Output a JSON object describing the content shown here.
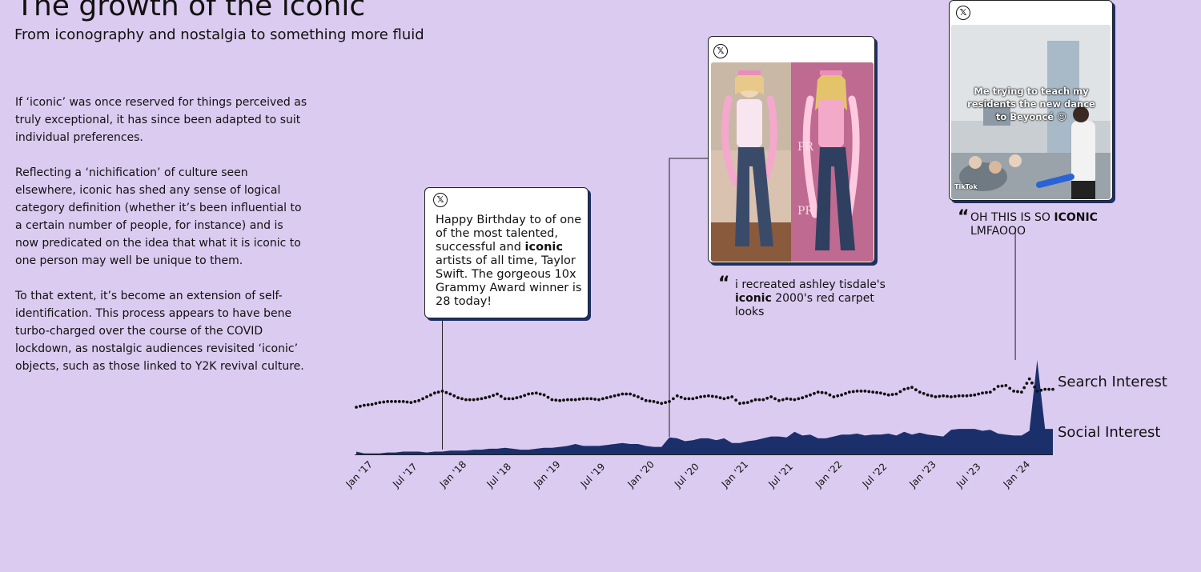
{
  "header": {
    "title": "The growth of the iconic",
    "subtitle": "From iconography and nostalgia to something more fluid"
  },
  "body": {
    "paragraphs": [
      "If ‘iconic’ was once reserved for things perceived as truly exceptional, it has since been adapted to suit individual preferences.",
      "Reflecting a ‘nichification’ of culture seen elsewhere, iconic has shed any sense of logical category definition (whether it’s been influential to a certain number of people, for instance) and is now predicated on the idea that what it is iconic to one person may well be unique to them.",
      "To that extent, it’s become an extension of self-identification. This process appears to have bene turbo-charged over the course of the COVID lockdown, as nostalgic audiences revisited ‘iconic’ objects, such as those linked to Y2K revival culture."
    ]
  },
  "cards": {
    "tweet": {
      "logo": "𝕏",
      "text_before": "Happy Birthday to of one of the most talented, successful and ",
      "keyword": "iconic",
      "text_after": " artists of all time, Taylor Swift. The gorgeous 10x Grammy Award winner is 28 today!"
    },
    "photo_post": {
      "logo": "𝕏",
      "quote_before": "i recreated ashley tisdale's ",
      "keyword": "iconic",
      "quote_after": " 2000's red carpet looks"
    },
    "video_post": {
      "logo": "𝕏",
      "caption": "Me trying to teach my residents the new dance to Beyoncé 😉",
      "watermark": "TikTok",
      "quote_before": "OH THIS IS SO ",
      "keyword": "ICONIC",
      "quote_after": " LMFAOOO"
    }
  },
  "colors": {
    "background": "#dccbf0",
    "social_fill": "#1b2f6b",
    "search_dots": "#111111",
    "card_shadow": "#1b2f6b"
  },
  "chart_data": {
    "type": "area",
    "title": "",
    "xlabel": "",
    "ylabel": "",
    "x_ticks": [
      "Jan '17",
      "Jul '17",
      "Jan '18",
      "Jul '18",
      "Jan '19",
      "Jul '19",
      "Jan '20",
      "Jul '20",
      "Jan '21",
      "Jul '21",
      "Jan '22",
      "Jul '22",
      "Jan '23",
      "Jul '23",
      "Jan '24"
    ],
    "x_range": [
      "Jan '17",
      "Apr '24"
    ],
    "ylim": [
      0,
      100
    ],
    "grid": false,
    "legend": "right-inline",
    "series": [
      {
        "name": "Search Interest",
        "style": "dotted line",
        "values": [
          50,
          52,
          53,
          55,
          56,
          56,
          56,
          55,
          57,
          61,
          65,
          67,
          64,
          60,
          58,
          58,
          59,
          61,
          64,
          59,
          59,
          61,
          64,
          65,
          63,
          58,
          57,
          58,
          58,
          59,
          59,
          58,
          60,
          62,
          64,
          64,
          61,
          57,
          56,
          54,
          56,
          62,
          59,
          59,
          61,
          62,
          61,
          59,
          61,
          54,
          55,
          58,
          58,
          61,
          57,
          59,
          58,
          60,
          63,
          66,
          65,
          61,
          63,
          66,
          67,
          67,
          66,
          65,
          63,
          64,
          69,
          71,
          66,
          63,
          61,
          62,
          61,
          62,
          62,
          63,
          65,
          66,
          72,
          73,
          67,
          66,
          80,
          67,
          69,
          69
        ]
      },
      {
        "name": "Social Interest",
        "style": "filled area",
        "values": [
          3,
          1,
          1,
          1,
          2,
          2,
          3,
          3,
          3,
          2,
          3,
          3,
          4,
          4,
          4,
          5,
          5,
          6,
          6,
          7,
          6,
          5,
          5,
          6,
          7,
          7,
          8,
          9,
          11,
          9,
          9,
          9,
          10,
          11,
          12,
          11,
          11,
          9,
          8,
          8,
          18,
          17,
          14,
          15,
          17,
          17,
          15,
          17,
          12,
          12,
          14,
          15,
          17,
          19,
          19,
          18,
          24,
          20,
          21,
          17,
          17,
          19,
          21,
          21,
          22,
          20,
          21,
          21,
          22,
          20,
          24,
          21,
          23,
          21,
          20,
          19,
          26,
          27,
          27,
          27,
          25,
          26,
          22,
          21,
          20,
          20,
          25,
          100,
          27,
          27
        ]
      }
    ],
    "annotations": [
      {
        "date": "Dec '17",
        "label": "Taylor Swift birthday tweet"
      },
      {
        "date": "May '20",
        "label": "Ashley Tisdale red carpet recreation"
      },
      {
        "date": "Jan '24",
        "label": "Beyoncé dance video"
      }
    ]
  }
}
